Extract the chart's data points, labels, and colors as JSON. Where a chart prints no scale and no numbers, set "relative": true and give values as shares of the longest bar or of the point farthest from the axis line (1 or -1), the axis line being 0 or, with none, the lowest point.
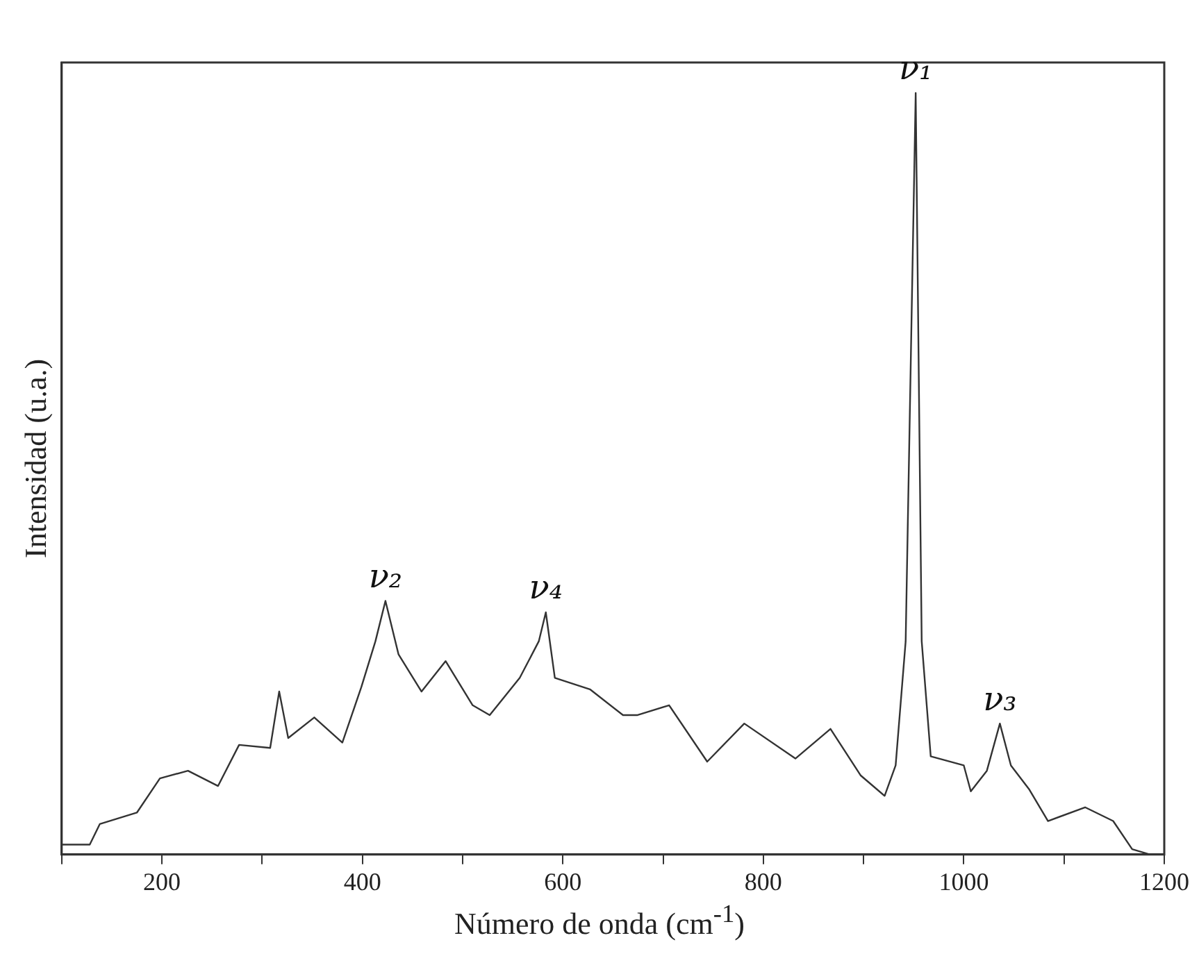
{
  "chart_data": {
    "type": "line",
    "relative": true,
    "xlabel": "Número de onda (cm$^{-1}$)",
    "ylabel": "Intensidad (u.a.)",
    "xlim": [
      100,
      1200
    ],
    "xticks": [
      {
        "value": 100,
        "label": null
      },
      200,
      {
        "value": 300,
        "label": null
      },
      400,
      {
        "value": 500,
        "label": null
      },
      600,
      {
        "value": 700,
        "label": null
      },
      800,
      {
        "value": 900,
        "label": null
      },
      1000,
      {
        "value": 1100,
        "label": null
      },
      1200
    ],
    "marker": "none",
    "line_style": "solid",
    "grid": false,
    "legend": false,
    "series": [
      {
        "color": "#333333",
        "x": [
          100,
          128,
          138,
          175,
          198,
          226,
          256,
          277,
          308,
          317,
          326,
          352,
          380,
          399,
          413,
          423,
          436,
          459,
          483,
          510,
          527,
          557,
          576,
          583,
          592,
          627,
          660,
          674,
          706,
          744,
          781,
          832,
          867,
          897,
          921,
          932,
          942,
          952,
          958,
          967,
          1000,
          1007,
          1023,
          1036,
          1047,
          1065,
          1084,
          1121,
          1149,
          1168,
          1186,
          1200
        ],
        "values": [
          0.013,
          0.013,
          0.04,
          0.055,
          0.1,
          0.11,
          0.09,
          0.144,
          0.14,
          0.214,
          0.153,
          0.18,
          0.147,
          0.22,
          0.28,
          0.333,
          0.263,
          0.214,
          0.254,
          0.196,
          0.183,
          0.232,
          0.28,
          0.318,
          0.232,
          0.217,
          0.183,
          0.183,
          0.196,
          0.122,
          0.172,
          0.126,
          0.165,
          0.104,
          0.077,
          0.117,
          0.28,
          1,
          0.28,
          0.129,
          0.117,
          0.083,
          0.11,
          0.172,
          0.117,
          0.086,
          0.044,
          0.062,
          0.044,
          0.007,
          0,
          0
        ]
      }
    ],
    "annotations": [
      {
        "text": "ν₁",
        "x": 952,
        "y": 1
      },
      {
        "text": "ν₂",
        "x": 423,
        "y": 0.333
      },
      {
        "text": "ν₃",
        "x": 1036,
        "y": 0.172
      },
      {
        "text": "ν₄",
        "x": 583,
        "y": 0.318
      }
    ]
  }
}
